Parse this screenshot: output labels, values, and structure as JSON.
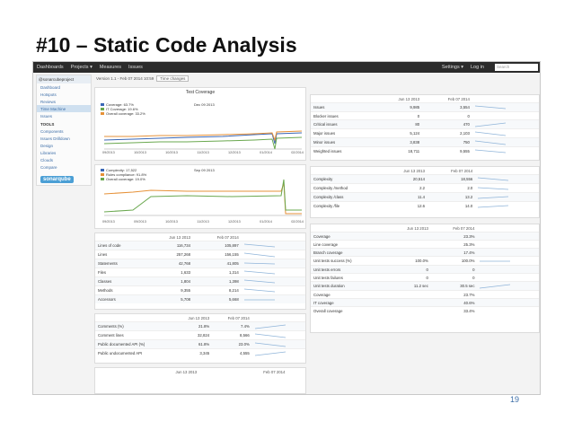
{
  "slide": {
    "title": "#10 – Static Code Analysis",
    "page_number": "19"
  },
  "topnav": {
    "items": [
      "Dashboards",
      "Projects ▾",
      "Measures",
      "Issues"
    ],
    "settings": "Settings ▾",
    "login": "Log in",
    "search_placeholder": "Search"
  },
  "sidebar": {
    "project": "@sonarcubeproject",
    "items": [
      "Dashboard",
      "Hotspots",
      "Reviews",
      "Time Machine",
      "Issues"
    ],
    "tools_header": "TOOLS",
    "tools": [
      "Components",
      "Issues Drilldown",
      "Design",
      "Libraries",
      "Clouds",
      "Compare"
    ],
    "logo": "sonarqube"
  },
  "breadcrumb": {
    "text": "Version 1.1 - Feb 07 2014 10:59",
    "select": "Time changes"
  },
  "coverage_chart": {
    "title": "Test Coverage",
    "date_label": "Dec 09 2013",
    "legend": [
      "Coverage: 63.7%",
      "IT Coverage: 19.6%",
      "Overall coverage: 33.2%"
    ],
    "ticks": [
      "09/2013",
      "10/2013",
      "10/2013",
      "11/2013",
      "12/2013",
      "01/2014",
      "02/2014"
    ]
  },
  "complexity_chart": {
    "date_label": "Sep 09 2013",
    "legend": [
      "Complexity: 17,522",
      "Rules compliance: 91.8%",
      "Overall coverage: 19.0%"
    ],
    "ticks": [
      "09/2013",
      "09/2013",
      "10/2013",
      "11/2013",
      "12/2013",
      "01/2014",
      "02/2014"
    ]
  },
  "issues_table": {
    "cols": [
      "Jun 13 2013",
      "Feb 07 2014"
    ],
    "rows": [
      {
        "label": "Issues",
        "a": "9,985",
        "b": "3,554"
      },
      {
        "label": "Blocker issues",
        "a": "0",
        "b": "0"
      },
      {
        "label": "Critical issues",
        "a": "80",
        "b": "470"
      },
      {
        "label": "Major issues",
        "a": "5,124",
        "b": "2,103"
      },
      {
        "label": "Minor issues",
        "a": "3,838",
        "b": "750"
      },
      {
        "label": "Weighted issues",
        "a": "18,711",
        "b": "9,555"
      }
    ]
  },
  "complexity_table": {
    "cols": [
      "Jun 13 2013",
      "Feb 07 2014"
    ],
    "rows": [
      {
        "label": "Complexity",
        "a": "20,514",
        "b": "18,556"
      },
      {
        "label": "Complexity /method",
        "a": "2.2",
        "b": "2.0"
      },
      {
        "label": "Complexity /class",
        "a": "11.4",
        "b": "13.2"
      },
      {
        "label": "Complexity /file",
        "a": "12.6",
        "b": "14.0"
      }
    ]
  },
  "size_table": {
    "cols": [
      "Jun 13 2013",
      "Feb 07 2014"
    ],
    "rows": [
      {
        "label": "Lines of code",
        "a": "116,734",
        "b": "105,897"
      },
      {
        "label": "Lines",
        "a": "257,268",
        "b": "156,155"
      },
      {
        "label": "Statements",
        "a": "42,768",
        "b": "41,805"
      },
      {
        "label": "Files",
        "a": "1,633",
        "b": "1,314"
      },
      {
        "label": "Classes",
        "a": "1,804",
        "b": "1,398"
      },
      {
        "label": "Methods",
        "a": "9,355",
        "b": "8,214"
      },
      {
        "label": "Accessors",
        "a": "5,708",
        "b": "5,668"
      }
    ]
  },
  "coverage_table": {
    "cols": [
      "Jun 13 2013",
      "Feb 07 2014"
    ],
    "rows": [
      {
        "label": "Coverage",
        "a": "",
        "b": "23.3%"
      },
      {
        "label": "Line coverage",
        "a": "",
        "b": "25.3%"
      },
      {
        "label": "Branch coverage",
        "a": "",
        "b": "17.4%"
      },
      {
        "label": "Unit tests success (%)",
        "a": "100.0%",
        "b": "100.0%"
      },
      {
        "label": "Unit tests errors",
        "a": "0",
        "b": "0"
      },
      {
        "label": "Unit tests failures",
        "a": "0",
        "b": "0"
      },
      {
        "label": "Unit tests duration",
        "a": "11.2 sec",
        "b": "30.5 sec"
      },
      {
        "label": "Coverage",
        "a": "",
        "b": "23.7%"
      },
      {
        "label": "IT coverage",
        "a": "",
        "b": "40.6%"
      },
      {
        "label": "Overall coverage",
        "a": "",
        "b": "33.4%"
      }
    ]
  },
  "comments_table": {
    "cols": [
      "Jun 13 2013",
      "Feb 07 2014"
    ],
    "rows": [
      {
        "label": "Comments (%)",
        "a": "21.8%",
        "b": "7.4%"
      },
      {
        "label": "Comment lines",
        "a": "32,824",
        "b": "8,566"
      },
      {
        "label": "Public documented API (%)",
        "a": "61.8%",
        "b": "23.0%"
      },
      {
        "label": "Public undocumented API",
        "a": "3,345",
        "b": "4,555"
      }
    ]
  },
  "last_table": {
    "cols": [
      "Jun 13 2013",
      "Feb 07 2014"
    ]
  },
  "colors": {
    "coverage": "#3a67b6",
    "it_coverage": "#6aa84f",
    "overall": "#e69138",
    "spark": "#8fb4d9"
  }
}
